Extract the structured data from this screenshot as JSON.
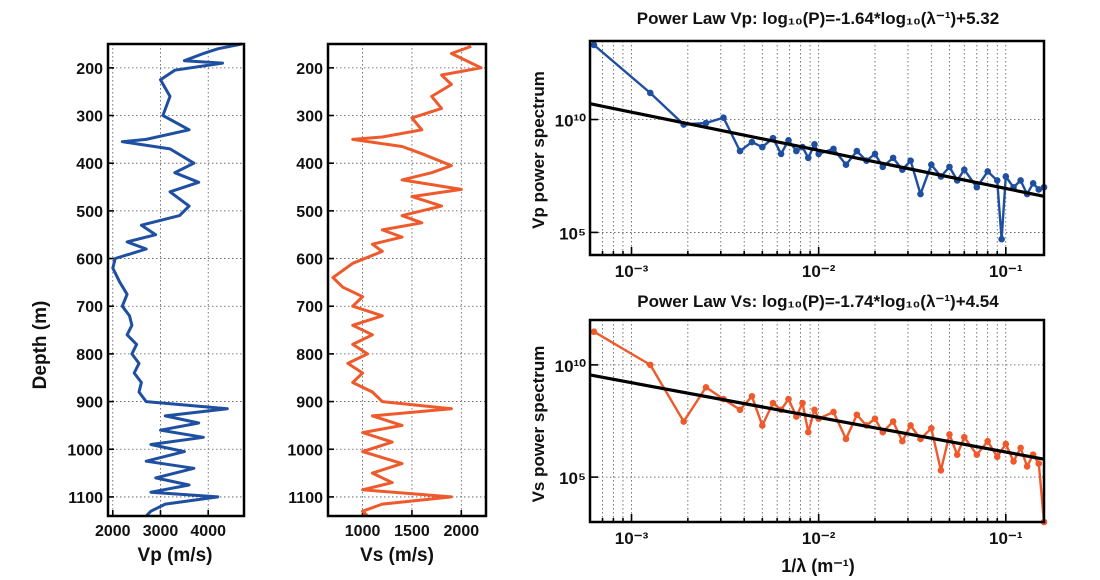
{
  "colors": {
    "vp": "#1f4fa0",
    "vs": "#ee5a2c",
    "fit": "#000000"
  },
  "labels": {
    "depth_axis": "Depth (m)",
    "vp_axis": "Vp (m/s)",
    "vs_axis": "Vs (m/s)",
    "vp_spec_title": "Power Law Vp:  log₁₀(P)=-1.64*log₁₀(λ⁻¹)+5.32",
    "vs_spec_title": "Power Law Vs:  log₁₀(P)=-1.74*log₁₀(λ⁻¹)+4.54",
    "vp_spec_ylabel": "Vp power spectrum",
    "vs_spec_ylabel": "Vs power spectrum",
    "freq_axis": "1/λ (m⁻¹)"
  },
  "chart_data": [
    {
      "type": "line",
      "id": "vp_log",
      "xlabel": "Vp (m/s)",
      "ylabel": "Depth (m)",
      "xlim": [
        1900,
        4750
      ],
      "ylim": [
        1140,
        150
      ],
      "xticks": [
        2000,
        3000,
        4000
      ],
      "yticks": [
        200,
        300,
        400,
        500,
        600,
        700,
        800,
        900,
        1000,
        1100
      ],
      "grid": true,
      "series": [
        {
          "points": [
            [
              4700,
              150
            ],
            [
              4200,
              160
            ],
            [
              3900,
              170
            ],
            [
              3500,
              185
            ],
            [
              4300,
              190
            ],
            [
              3300,
              205
            ],
            [
              3000,
              225
            ],
            [
              3200,
              260
            ],
            [
              3050,
              300
            ],
            [
              3600,
              330
            ],
            [
              2700,
              350
            ],
            [
              2200,
              355
            ],
            [
              3200,
              370
            ],
            [
              3700,
              400
            ],
            [
              3300,
              420
            ],
            [
              3800,
              440
            ],
            [
              3200,
              460
            ],
            [
              3600,
              490
            ],
            [
              3400,
              510
            ],
            [
              2600,
              530
            ],
            [
              2900,
              550
            ],
            [
              2300,
              565
            ],
            [
              2700,
              580
            ],
            [
              2050,
              600
            ],
            [
              2000,
              620
            ],
            [
              2150,
              650
            ],
            [
              2300,
              675
            ],
            [
              2200,
              700
            ],
            [
              2350,
              720
            ],
            [
              2400,
              740
            ],
            [
              2300,
              760
            ],
            [
              2500,
              780
            ],
            [
              2400,
              800
            ],
            [
              2550,
              820
            ],
            [
              2450,
              840
            ],
            [
              2600,
              860
            ],
            [
              2550,
              880
            ],
            [
              2700,
              900
            ],
            [
              4400,
              915
            ],
            [
              3100,
              930
            ],
            [
              3800,
              945
            ],
            [
              3000,
              960
            ],
            [
              3900,
              975
            ],
            [
              2800,
              990
            ],
            [
              3500,
              1005
            ],
            [
              2700,
              1025
            ],
            [
              3700,
              1040
            ],
            [
              2900,
              1060
            ],
            [
              3600,
              1075
            ],
            [
              2800,
              1090
            ],
            [
              4200,
              1100
            ],
            [
              3100,
              1115
            ],
            [
              2800,
              1130
            ],
            [
              2700,
              1140
            ]
          ]
        }
      ]
    },
    {
      "type": "line",
      "id": "vs_log",
      "xlabel": "Vs (m/s)",
      "xlim": [
        650,
        2250
      ],
      "ylim": [
        1140,
        150
      ],
      "xticks": [
        1000,
        1500,
        2000
      ],
      "yticks": [
        200,
        300,
        400,
        500,
        600,
        700,
        800,
        900,
        1000,
        1100
      ],
      "grid": true,
      "series": [
        {
          "points": [
            [
              2100,
              155
            ],
            [
              1900,
              170
            ],
            [
              2200,
              200
            ],
            [
              1800,
              215
            ],
            [
              1900,
              235
            ],
            [
              1700,
              260
            ],
            [
              1800,
              285
            ],
            [
              1500,
              305
            ],
            [
              1600,
              330
            ],
            [
              1200,
              345
            ],
            [
              900,
              350
            ],
            [
              1400,
              365
            ],
            [
              1600,
              380
            ],
            [
              1900,
              405
            ],
            [
              1700,
              420
            ],
            [
              1400,
              435
            ],
            [
              2000,
              455
            ],
            [
              1500,
              470
            ],
            [
              1800,
              490
            ],
            [
              1400,
              510
            ],
            [
              1600,
              525
            ],
            [
              1200,
              540
            ],
            [
              1400,
              555
            ],
            [
              1100,
              570
            ],
            [
              1200,
              585
            ],
            [
              900,
              610
            ],
            [
              700,
              640
            ],
            [
              800,
              660
            ],
            [
              1000,
              680
            ],
            [
              900,
              700
            ],
            [
              1200,
              720
            ],
            [
              900,
              740
            ],
            [
              1100,
              760
            ],
            [
              900,
              780
            ],
            [
              1050,
              800
            ],
            [
              850,
              820
            ],
            [
              1000,
              840
            ],
            [
              900,
              860
            ],
            [
              1100,
              880
            ],
            [
              1200,
              900
            ],
            [
              1900,
              915
            ],
            [
              1100,
              930
            ],
            [
              1400,
              950
            ],
            [
              1000,
              965
            ],
            [
              1300,
              985
            ],
            [
              1000,
              1005
            ],
            [
              1400,
              1030
            ],
            [
              1100,
              1050
            ],
            [
              1300,
              1070
            ],
            [
              1000,
              1085
            ],
            [
              1900,
              1100
            ],
            [
              1200,
              1115
            ],
            [
              1000,
              1130
            ],
            [
              1050,
              1140
            ]
          ]
        }
      ]
    },
    {
      "type": "scatter",
      "id": "vp_spectrum",
      "title": "Power Law Vp:  log₁₀(P)=-1.64*log₁₀(λ⁻¹)+5.32",
      "xlabel": "",
      "ylabel": "Vp power spectrum",
      "x_scale": "log",
      "y_scale": "log",
      "xlim": [
        0.0006,
        0.16
      ],
      "ylim": [
        10000.0,
        30000000000000.0
      ],
      "xticks": [
        "10⁻³",
        "10⁻²",
        "10⁻¹"
      ],
      "yticks": [
        "10⁵",
        "10¹⁰"
      ],
      "grid": true,
      "series": [
        {
          "name": "Vp",
          "points": [
            [
              0.00063,
              20000000000000.0
            ],
            [
              0.00126,
              150000000000.0
            ],
            [
              0.0019,
              6000000000.0
            ],
            [
              0.0025,
              7000000000.0
            ],
            [
              0.0031,
              12000000000.0
            ],
            [
              0.0038,
              400000000.0
            ],
            [
              0.0044,
              1000000000.0
            ],
            [
              0.005,
              600000000.0
            ],
            [
              0.0057,
              1500000000.0
            ],
            [
              0.0063,
              300000000.0
            ],
            [
              0.0069,
              1200000000.0
            ],
            [
              0.0076,
              400000000.0
            ],
            [
              0.0082,
              600000000.0
            ],
            [
              0.0088,
              200000000.0
            ],
            [
              0.0095,
              800000000.0
            ],
            [
              0.01,
              300000000.0
            ],
            [
              0.012,
              500000000.0
            ],
            [
              0.014,
              100000000.0
            ],
            [
              0.016,
              400000000.0
            ],
            [
              0.018,
              150000000.0
            ],
            [
              0.02,
              300000000.0
            ],
            [
              0.022,
              80000000.0
            ],
            [
              0.025,
              200000000.0
            ],
            [
              0.028,
              60000000.0
            ],
            [
              0.031,
              150000000.0
            ],
            [
              0.035,
              5000000.0
            ],
            [
              0.04,
              100000000.0
            ],
            [
              0.045,
              30000000.0
            ],
            [
              0.05,
              80000000.0
            ],
            [
              0.055,
              20000000.0
            ],
            [
              0.06,
              60000000.0
            ],
            [
              0.07,
              10000000.0
            ],
            [
              0.08,
              50000000.0
            ],
            [
              0.09,
              20000000.0
            ],
            [
              0.095,
              50000.0
            ],
            [
              0.1,
              30000000.0
            ],
            [
              0.11,
              10000000.0
            ],
            [
              0.12,
              20000000.0
            ],
            [
              0.13,
              5000000.0
            ],
            [
              0.14,
              15000000.0
            ],
            [
              0.15,
              8000000.0
            ],
            [
              0.16,
              10000000.0
            ]
          ]
        }
      ],
      "fit": {
        "slope": -1.64,
        "intercept": 5.32
      }
    },
    {
      "type": "scatter",
      "id": "vs_spectrum",
      "title": "Power Law Vs:  log₁₀(P)=-1.74*log₁₀(λ⁻¹)+4.54",
      "xlabel": "1/λ (m⁻¹)",
      "ylabel": "Vs power spectrum",
      "x_scale": "log",
      "y_scale": "log",
      "xlim": [
        0.0006,
        0.16
      ],
      "ylim": [
        1000.0,
        1000000000000.0
      ],
      "xticks": [
        "10⁻³",
        "10⁻²",
        "10⁻¹"
      ],
      "yticks": [
        "10⁵",
        "10¹⁰"
      ],
      "grid": true,
      "series": [
        {
          "name": "Vs",
          "points": [
            [
              0.00063,
              300000000000.0
            ],
            [
              0.00126,
              10000000000.0
            ],
            [
              0.0019,
              30000000.0
            ],
            [
              0.0025,
              1000000000.0
            ],
            [
              0.0031,
              300000000.0
            ],
            [
              0.0038,
              100000000.0
            ],
            [
              0.0044,
              400000000.0
            ],
            [
              0.005,
              20000000.0
            ],
            [
              0.0057,
              200000000.0
            ],
            [
              0.0063,
              100000000.0
            ],
            [
              0.0069,
              300000000.0
            ],
            [
              0.0076,
              50000000.0
            ],
            [
              0.0082,
              200000000.0
            ],
            [
              0.0088,
              10000000.0
            ],
            [
              0.0095,
              100000000.0
            ],
            [
              0.01,
              40000000.0
            ],
            [
              0.012,
              80000000.0
            ],
            [
              0.014,
              5000000.0
            ],
            [
              0.016,
              60000000.0
            ],
            [
              0.018,
              20000000.0
            ],
            [
              0.02,
              40000000.0
            ],
            [
              0.022,
              10000000.0
            ],
            [
              0.025,
              30000000.0
            ],
            [
              0.028,
              4000000.0
            ],
            [
              0.031,
              20000000.0
            ],
            [
              0.035,
              5000000.0
            ],
            [
              0.04,
              15000000.0
            ],
            [
              0.045,
              200000.0
            ],
            [
              0.05,
              8000000.0
            ],
            [
              0.055,
              1000000.0
            ],
            [
              0.06,
              6000000.0
            ],
            [
              0.07,
              1000000.0
            ],
            [
              0.08,
              4000000.0
            ],
            [
              0.09,
              800000.0
            ],
            [
              0.1,
              3000000.0
            ],
            [
              0.11,
              500000.0
            ],
            [
              0.12,
              2000000.0
            ],
            [
              0.13,
              300000.0
            ],
            [
              0.14,
              1000000.0
            ],
            [
              0.15,
              400000.0
            ],
            [
              0.16,
              1000.0
            ]
          ]
        }
      ],
      "fit": {
        "slope": -1.74,
        "intercept": 4.54
      }
    }
  ]
}
